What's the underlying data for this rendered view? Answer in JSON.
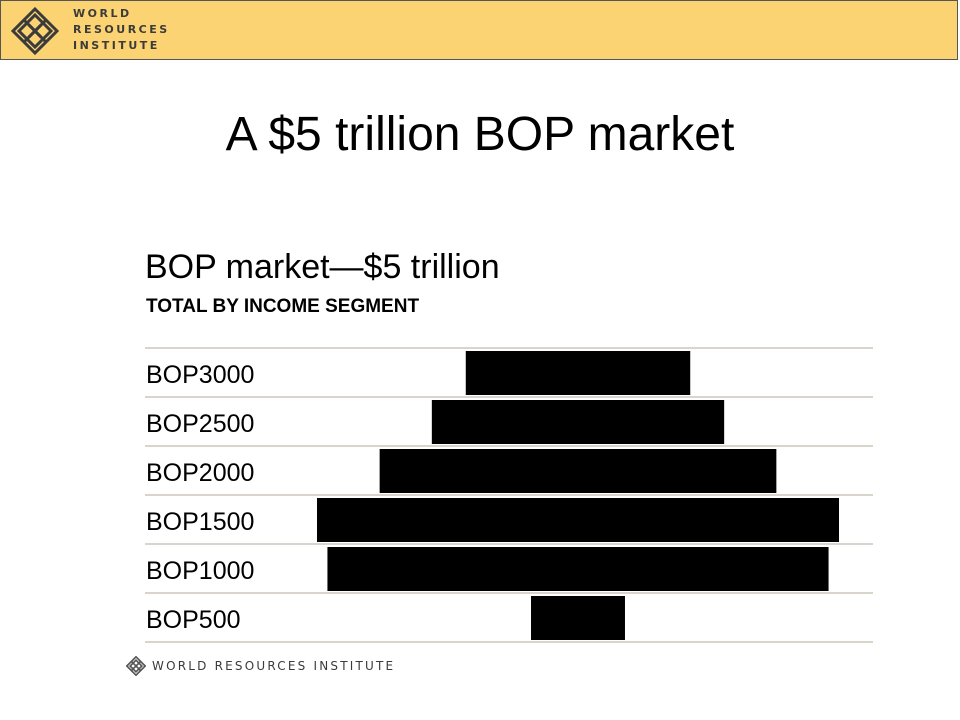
{
  "header": {
    "logo_icon": "wri-knot-icon",
    "wordmark_lines": [
      "WORLD",
      "RESOURCES",
      "INSTITUTE"
    ],
    "background_color": "#fcd373"
  },
  "slide": {
    "title": "A $5 trillion BOP market"
  },
  "chart_data": {
    "type": "bar",
    "orientation": "horizontal-centered",
    "title": "BOP market—$5 trillion",
    "subtitle": "TOTAL BY INCOME SEGMENT",
    "categories": [
      "BOP3000",
      "BOP2500",
      "BOP2000",
      "BOP1500",
      "BOP1000",
      "BOP500"
    ],
    "values": [
      0.43,
      0.56,
      0.76,
      1.0,
      0.96,
      0.18
    ],
    "bar_color": "#000000",
    "gridline_color": "#d9d4cc",
    "grid": true
  },
  "footer": {
    "logo_icon": "wri-knot-icon",
    "text": "WORLD RESOURCES INSTITUTE"
  }
}
